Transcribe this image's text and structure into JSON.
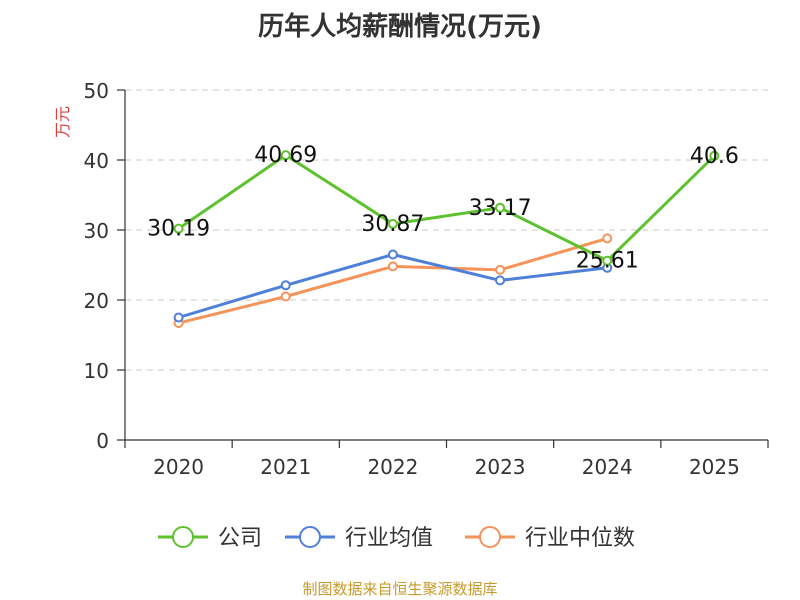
{
  "chart_data": {
    "type": "line",
    "title": "历年人均薪酬情况(万元)",
    "ylabel": "万元",
    "categories": [
      "2020",
      "2021",
      "2022",
      "2023",
      "2024",
      "2025"
    ],
    "ylim": [
      0,
      50
    ],
    "yticks": [
      "0",
      "10",
      "20",
      "30",
      "40",
      "50"
    ],
    "grid": true,
    "legend_position": "bottom",
    "series": [
      {
        "name": "公司",
        "color": "#5ec22e",
        "values": [
          30.19,
          40.69,
          30.87,
          33.17,
          25.61,
          40.6
        ],
        "labels": [
          "30.19",
          "40.69",
          "30.87",
          "33.17",
          "25.61",
          "40.6"
        ]
      },
      {
        "name": "行业均值",
        "color": "#4e80d9",
        "values": [
          17.5,
          22.1,
          26.5,
          22.8,
          24.6,
          null
        ]
      },
      {
        "name": "行业中位数",
        "color": "#f5935a",
        "values": [
          16.7,
          20.5,
          24.8,
          24.3,
          28.8,
          null
        ]
      }
    ]
  },
  "source": "制图数据来自恒生聚源数据库"
}
